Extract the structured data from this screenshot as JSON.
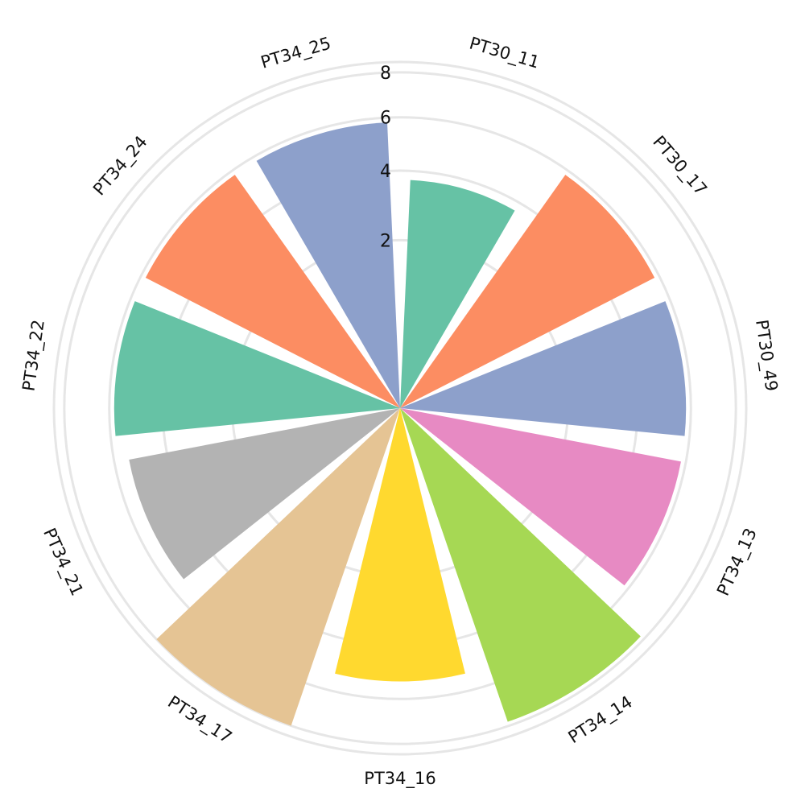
{
  "chart_data": {
    "type": "bar",
    "polar": true,
    "title": "",
    "categories": [
      "PT30_11",
      "PT30_17",
      "PT30_49",
      "PT34_13",
      "PT34_14",
      "PT34_16",
      "PT34_17",
      "PT34_21",
      "PT34_22",
      "PT34_24",
      "PT34_25"
    ],
    "values": [
      3.7,
      5.8,
      5.8,
      5.8,
      7.8,
      5.3,
      8.0,
      5.4,
      5.8,
      5.8,
      5.8
    ],
    "colors": [
      "#66c2a5",
      "#fc8d62",
      "#8da0cb",
      "#e78ac3",
      "#a6d854",
      "#ffd92f",
      "#e5c494",
      "#b3b3b3",
      "#66c2a5",
      "#fc8d62",
      "#8da0cb"
    ],
    "radial_ticks": [
      "2",
      "4",
      "6",
      "8"
    ],
    "radial_range": [
      0,
      8.5
    ],
    "grid": true,
    "legend": "none"
  }
}
